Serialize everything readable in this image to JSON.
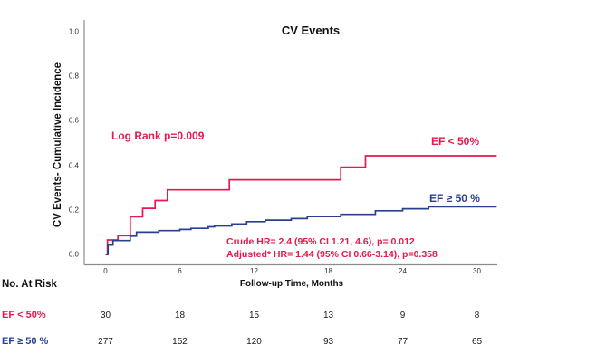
{
  "colors": {
    "ef_low": "#E5194C",
    "ef_high": "#28418F",
    "axis": "#8c8c8c",
    "text": "#111111"
  },
  "chart_data": {
    "type": "line",
    "subtype": "step-cumulative-incidence",
    "title": "CV Events",
    "xlabel": "Follow-up Time, Months",
    "ylabel": "CV Events- Cumulative Incidence",
    "xlim": [
      0,
      31.6
    ],
    "ylim": [
      0,
      1.0
    ],
    "grid": "off",
    "x_ticks": [
      "0",
      "6",
      "12",
      "18",
      "24",
      "30"
    ],
    "y_ticks": [
      "0.0",
      "0.2",
      "0.4",
      "0.6",
      "0.8",
      "1.0"
    ],
    "series": [
      {
        "key": "ef-low",
        "name": "EF < 50%",
        "color": "#E5194C",
        "end_time": 31.6,
        "steps": [
          [
            0.15,
            0.065
          ],
          [
            1.0,
            0.084
          ],
          [
            2.0,
            0.169
          ],
          [
            3.0,
            0.207
          ],
          [
            4.0,
            0.242
          ],
          [
            5.0,
            0.29
          ],
          [
            10.0,
            0.335
          ],
          [
            19.0,
            0.392
          ],
          [
            21.0,
            0.443
          ]
        ]
      },
      {
        "key": "ef-high",
        "name": "EF ≥ 50 %",
        "color": "#28418F",
        "end_time": 31.6,
        "steps": [
          [
            0.2,
            0.042
          ],
          [
            0.6,
            0.062
          ],
          [
            2.0,
            0.082
          ],
          [
            2.5,
            0.1
          ],
          [
            4.3,
            0.107
          ],
          [
            6.0,
            0.112
          ],
          [
            6.9,
            0.117
          ],
          [
            8.3,
            0.124
          ],
          [
            8.8,
            0.128
          ],
          [
            10.2,
            0.137
          ],
          [
            11.4,
            0.147
          ],
          [
            12.9,
            0.154
          ],
          [
            15.0,
            0.161
          ],
          [
            16.3,
            0.17
          ],
          [
            19.0,
            0.18
          ],
          [
            21.8,
            0.196
          ],
          [
            24.0,
            0.205
          ],
          [
            26.1,
            0.214
          ]
        ]
      }
    ],
    "annotations": {
      "log_rank": "Log Rank p=0.009",
      "crude_hr": "Crude HR= 2.4 (95% CI 1.21, 4.6), p= 0.012",
      "adjusted_hr": "Adjusted* HR= 1.44 (95% CI 0.66-3.14), p=0.358"
    },
    "risk_table": {
      "header": "No. At Risk",
      "times": [
        0,
        6,
        12,
        18,
        24,
        30
      ],
      "rows": [
        {
          "label": "EF < 50%",
          "color": "#E5194C",
          "values": [
            "30",
            "18",
            "15",
            "13",
            "9",
            "8"
          ]
        },
        {
          "label": "EF ≥ 50 %",
          "color": "#28418F",
          "values": [
            "277",
            "152",
            "120",
            "93",
            "77",
            "65"
          ]
        }
      ]
    }
  }
}
